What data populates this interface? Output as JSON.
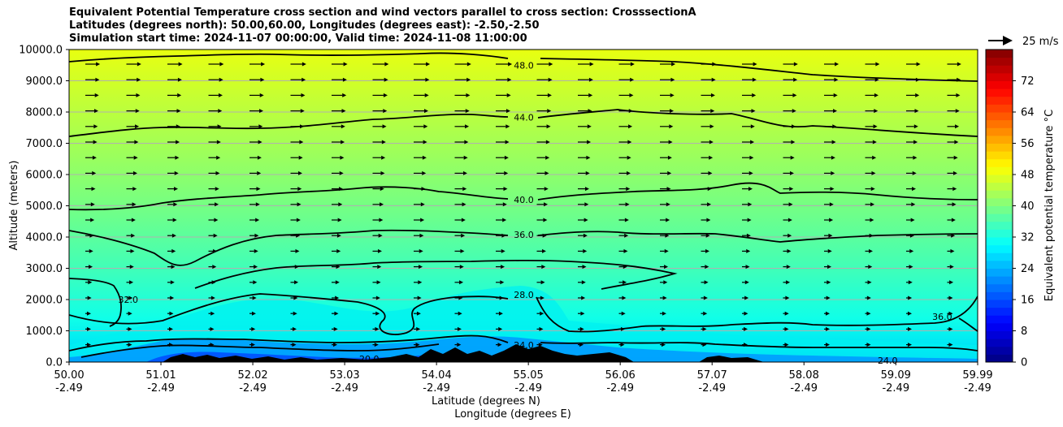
{
  "title": {
    "line1": "Equivalent Potential Temperature cross section and wind vectors parallel to cross section: CrosssectionA",
    "line2": "Latitudes (degrees north): 50.00,60.00, Longitudes (degrees east): -2.50,-2.50",
    "line3": "Simulation start time: 2024-11-07 00:00:00, Valid time: 2024-11-08 11:00:00"
  },
  "chart_data": {
    "type": "heatmap",
    "ylabel": "Altitude (meters)",
    "xlabel_lat": "Latitude (degrees N)",
    "xlabel_lon": "Longitude (degrees E)",
    "ylim": [
      0,
      10000
    ],
    "xlim": [
      50.0,
      59.99
    ],
    "y_ticks": [
      "0.0",
      "1000.0",
      "2000.0",
      "3000.0",
      "4000.0",
      "5000.0",
      "6000.0",
      "7000.0",
      "8000.0",
      "9000.0",
      "10000.0"
    ],
    "y_tick_values": [
      0,
      1000,
      2000,
      3000,
      4000,
      5000,
      6000,
      7000,
      8000,
      9000,
      10000
    ],
    "x_ticks_lat": [
      "50.00",
      "51.01",
      "52.02",
      "53.03",
      "54.04",
      "55.05",
      "56.06",
      "57.07",
      "58.08",
      "59.09",
      "59.99"
    ],
    "x_ticks_lon": [
      "-2.49",
      "-2.49",
      "-2.49",
      "-2.49",
      "-2.49",
      "-2.49",
      "-2.49",
      "-2.49",
      "-2.49",
      "-2.49",
      "-2.49"
    ],
    "x_tick_values": [
      50.0,
      51.01,
      52.02,
      53.03,
      54.04,
      55.05,
      56.06,
      57.07,
      58.08,
      59.09,
      59.99
    ],
    "grid": "horizontal",
    "colorbar": {
      "label": "Equivalent potential temperature $^\\circ$C",
      "ticks": [
        "0",
        "8",
        "16",
        "24",
        "32",
        "40",
        "48",
        "56",
        "64",
        "72"
      ],
      "tick_values": [
        0,
        8,
        16,
        24,
        32,
        40,
        48,
        56,
        64,
        72
      ],
      "range": [
        0,
        80
      ],
      "colormap": "jet"
    },
    "quiver_key": {
      "label": "25 m/s"
    },
    "contour_labels": [
      {
        "text": "48.0",
        "lat": 55.0,
        "alt": 9500
      },
      {
        "text": "44.0",
        "lat": 55.0,
        "alt": 7830
      },
      {
        "text": "40.0",
        "lat": 55.0,
        "alt": 5200
      },
      {
        "text": "36.0",
        "lat": 55.0,
        "alt": 4080
      },
      {
        "text": "28.0",
        "lat": 55.0,
        "alt": 2150
      },
      {
        "text": "32.0",
        "lat": 50.65,
        "alt": 2000
      },
      {
        "text": "36.0",
        "lat": 59.6,
        "alt": 1450
      },
      {
        "text": "24.0",
        "lat": 55.0,
        "alt": 550
      },
      {
        "text": "20.0",
        "lat": 53.3,
        "alt": 100
      },
      {
        "text": "24.0",
        "lat": 59.0,
        "alt": 50
      }
    ]
  }
}
